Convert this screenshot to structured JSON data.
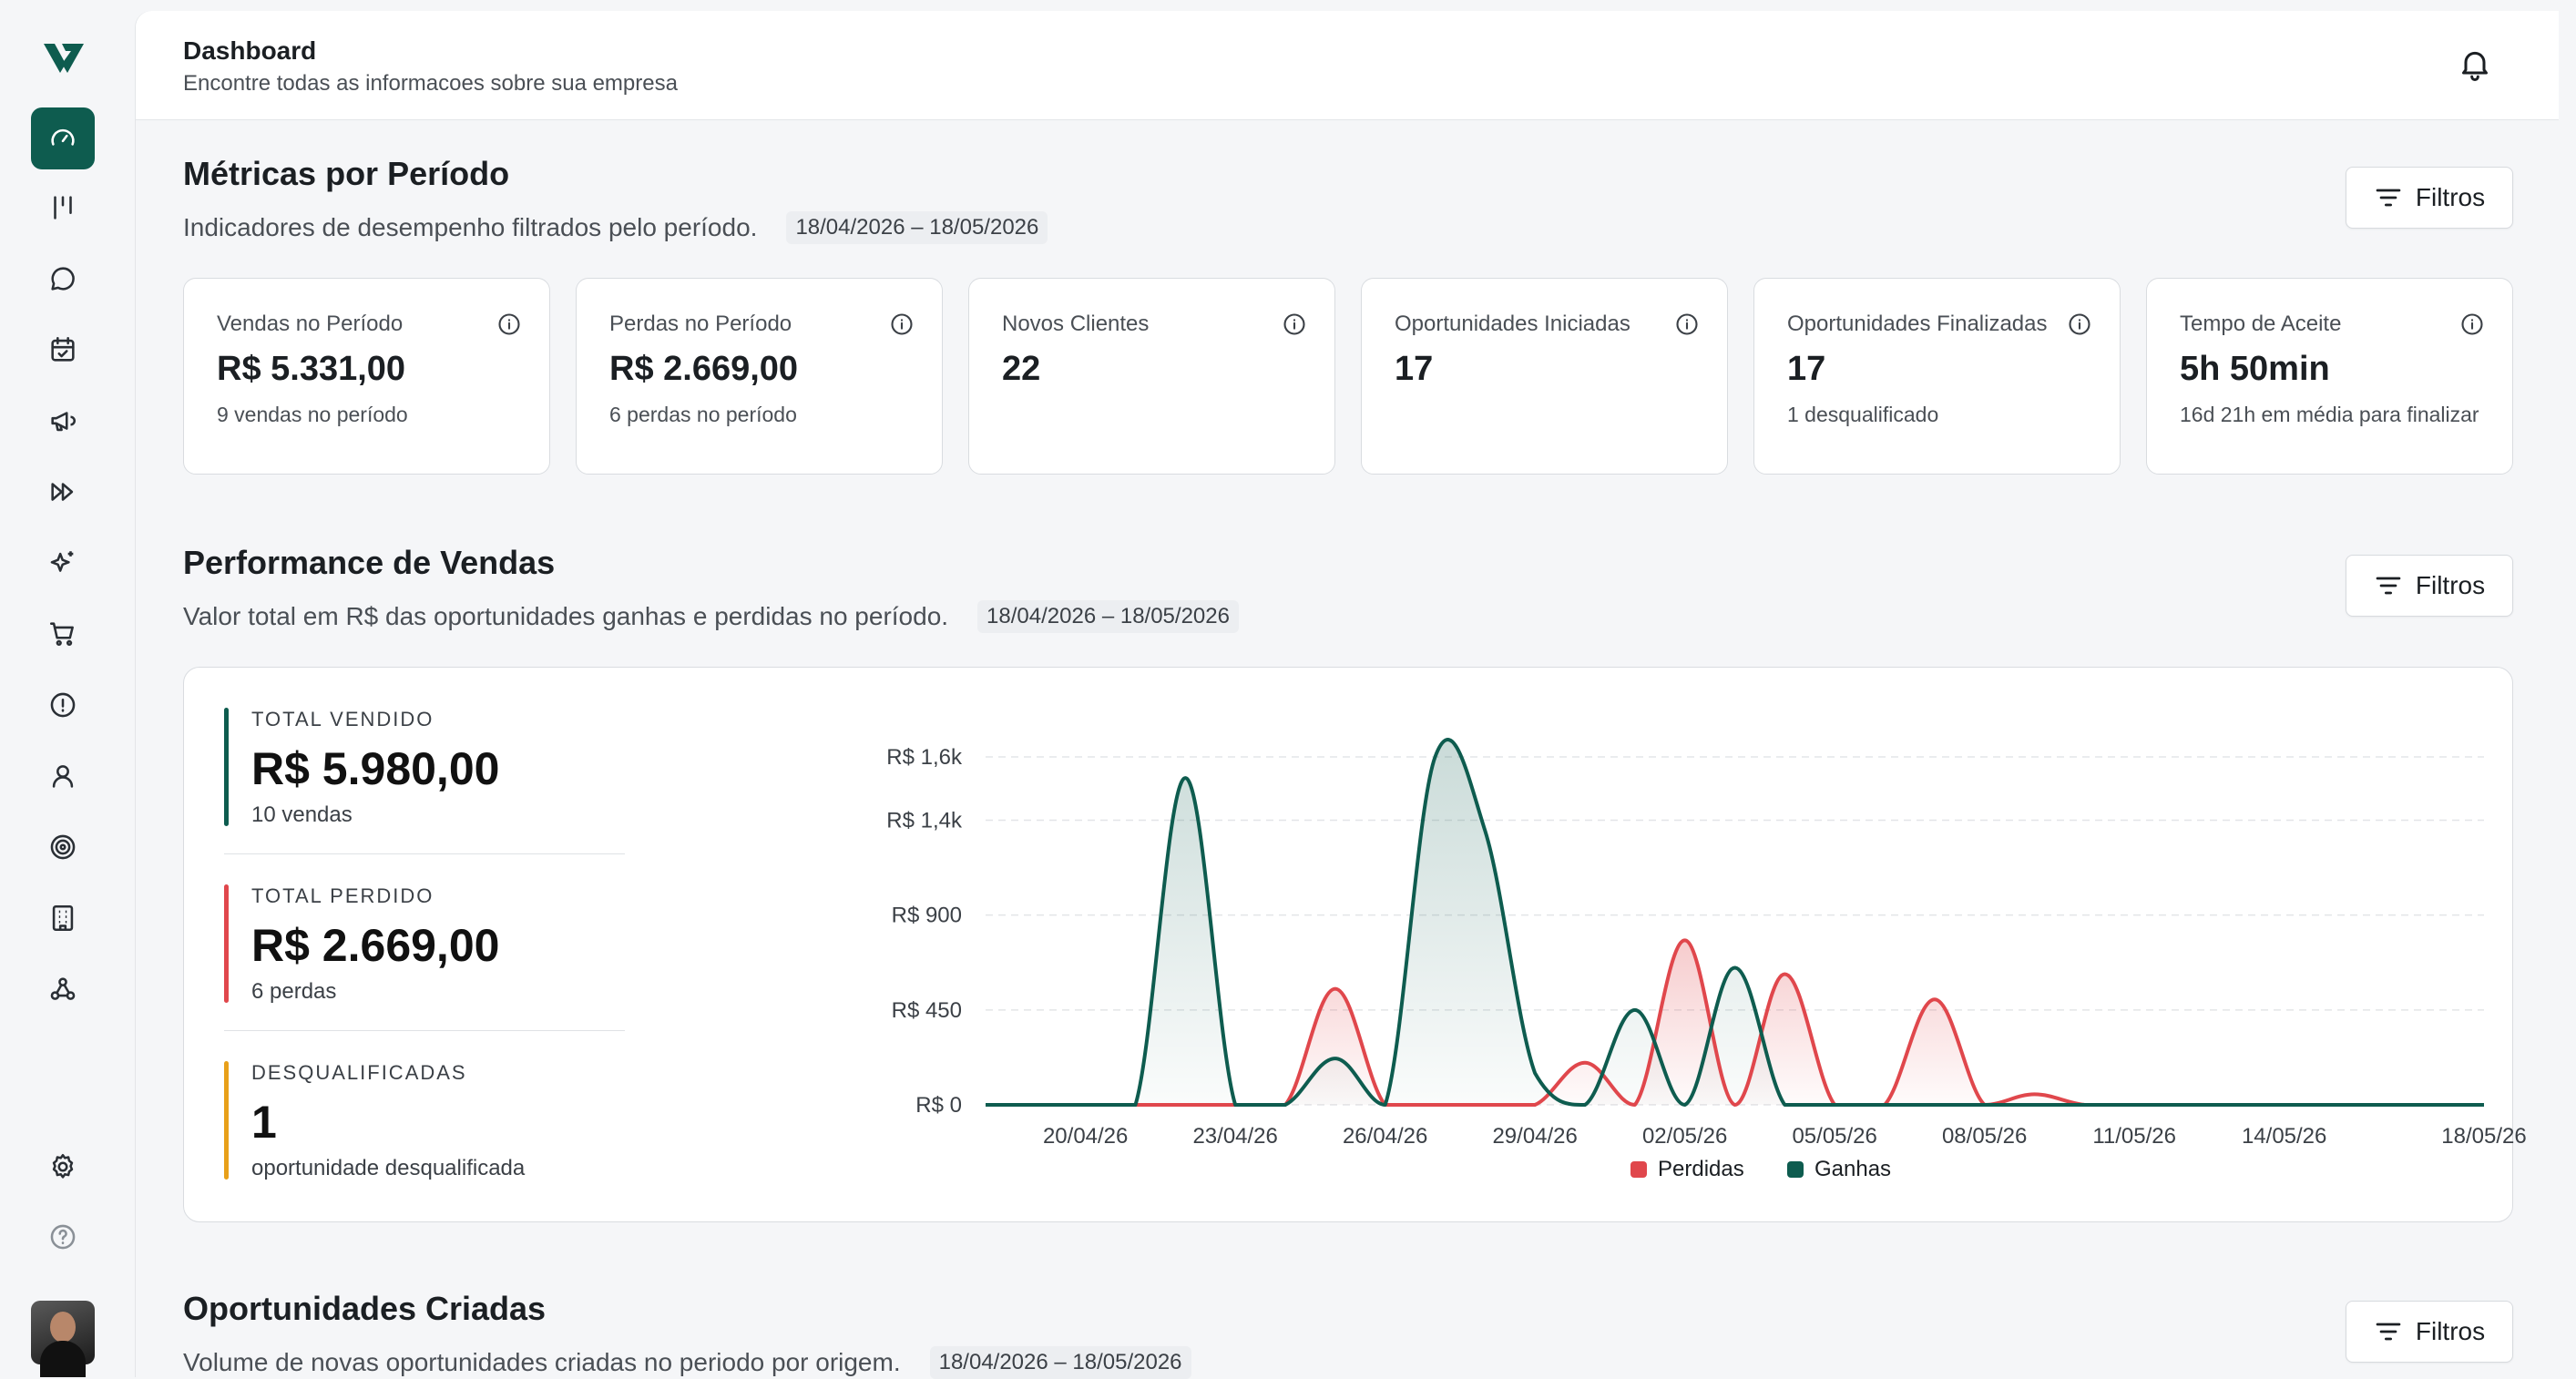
{
  "header": {
    "title": "Dashboard",
    "subtitle": "Encontre todas as informacoes sobre sua empresa"
  },
  "sidebar": {
    "items": [
      {
        "name": "dashboard",
        "icon": "gauge-icon",
        "active": true
      },
      {
        "name": "pipeline",
        "icon": "kanban-icon"
      },
      {
        "name": "chat",
        "icon": "chat-icon"
      },
      {
        "name": "calendar",
        "icon": "calendar-check-icon"
      },
      {
        "name": "campaigns",
        "icon": "megaphone-icon"
      },
      {
        "name": "automations",
        "icon": "fast-forward-icon"
      },
      {
        "name": "ai",
        "icon": "sparkles-icon"
      },
      {
        "name": "sales",
        "icon": "cart-icon"
      },
      {
        "name": "alerts",
        "icon": "alert-circle-icon"
      },
      {
        "name": "contacts",
        "icon": "user-icon"
      },
      {
        "name": "goals",
        "icon": "target-icon"
      },
      {
        "name": "companies",
        "icon": "building-icon"
      },
      {
        "name": "webhooks",
        "icon": "webhook-icon"
      }
    ],
    "settings_icon": "gear-icon",
    "help_icon": "help-circle-icon"
  },
  "metrics": {
    "title": "Métricas por Período",
    "description": "Indicadores de desempenho filtrados pelo período.",
    "date_range": "18/04/2026 – 18/05/2026",
    "filter_label": "Filtros",
    "cards": [
      {
        "label": "Vendas no Período",
        "value": "R$ 5.331,00",
        "sub": "9 vendas no período"
      },
      {
        "label": "Perdas no Período",
        "value": "R$ 2.669,00",
        "sub": "6 perdas no período"
      },
      {
        "label": "Novos Clientes",
        "value": "22",
        "sub": ""
      },
      {
        "label": "Oportunidades Iniciadas",
        "value": "17",
        "sub": ""
      },
      {
        "label": "Oportunidades Finalizadas",
        "value": "17",
        "sub": "1 desqualificado"
      },
      {
        "label": "Tempo de Aceite",
        "value": "5h 50min",
        "sub": "16d 21h em média para finalizar"
      }
    ]
  },
  "performance": {
    "title": "Performance de Vendas",
    "description": "Valor total em R$ das oportunidades ganhas e perdidas no período.",
    "date_range": "18/04/2026 – 18/05/2026",
    "filter_label": "Filtros",
    "kpis": {
      "vendido": {
        "label": "TOTAL VENDIDO",
        "value": "R$ 5.980,00",
        "sub": "10 vendas",
        "color": "#0e5c4f"
      },
      "perdido": {
        "label": "TOTAL PERDIDO",
        "value": "R$ 2.669,00",
        "sub": "6 perdas",
        "color": "#e0474c"
      },
      "desq": {
        "label": "DESQUALIFICADAS",
        "value": "1",
        "sub": "oportunidade desqualificada",
        "color": "#e8a019"
      }
    }
  },
  "chart_data": {
    "type": "area",
    "x": [
      "18/04/26",
      "19/04/26",
      "20/04/26",
      "21/04/26",
      "22/04/26",
      "23/04/26",
      "24/04/26",
      "25/04/26",
      "26/04/26",
      "27/04/26",
      "28/04/26",
      "29/04/26",
      "30/04/26",
      "01/05/26",
      "02/05/26",
      "03/05/26",
      "04/05/26",
      "05/05/26",
      "06/05/26",
      "07/05/26",
      "08/05/26",
      "09/05/26",
      "10/05/26",
      "11/05/26",
      "12/05/26",
      "13/05/26",
      "14/05/26",
      "15/05/26",
      "16/05/26",
      "17/05/26",
      "18/05/26"
    ],
    "x_tick_labels": [
      "20/04/26",
      "23/04/26",
      "26/04/26",
      "29/04/26",
      "02/05/26",
      "05/05/26",
      "08/05/26",
      "11/05/26",
      "14/05/26",
      "18/05/26"
    ],
    "y_tick_labels": [
      "R$ 0",
      "R$ 450",
      "R$ 900",
      "R$ 1,4k",
      "R$ 1,6k"
    ],
    "y_ticks": [
      0,
      450,
      900,
      1350,
      1650
    ],
    "ylim": [
      0,
      1650
    ],
    "series": [
      {
        "name": "Perdidas",
        "color": "#e0474c",
        "values": [
          0,
          0,
          0,
          0,
          0,
          0,
          0,
          550,
          0,
          0,
          0,
          0,
          200,
          0,
          780,
          0,
          620,
          0,
          0,
          500,
          0,
          50,
          0,
          0,
          0,
          0,
          0,
          0,
          0,
          0,
          0
        ]
      },
      {
        "name": "Ganhas",
        "color": "#0e5c4f",
        "values": [
          0,
          0,
          0,
          0,
          1550,
          0,
          0,
          220,
          0,
          1650,
          1300,
          150,
          0,
          450,
          0,
          650,
          0,
          0,
          0,
          0,
          0,
          0,
          0,
          0,
          0,
          0,
          0,
          0,
          0,
          0,
          0
        ]
      }
    ],
    "legend": "bottom-center",
    "grid": true
  },
  "oportunidades": {
    "title": "Oportunidades Criadas",
    "description": "Volume de novas oportunidades criadas no periodo por origem.",
    "date_range": "18/04/2026 – 18/05/2026",
    "filter_label": "Filtros"
  }
}
